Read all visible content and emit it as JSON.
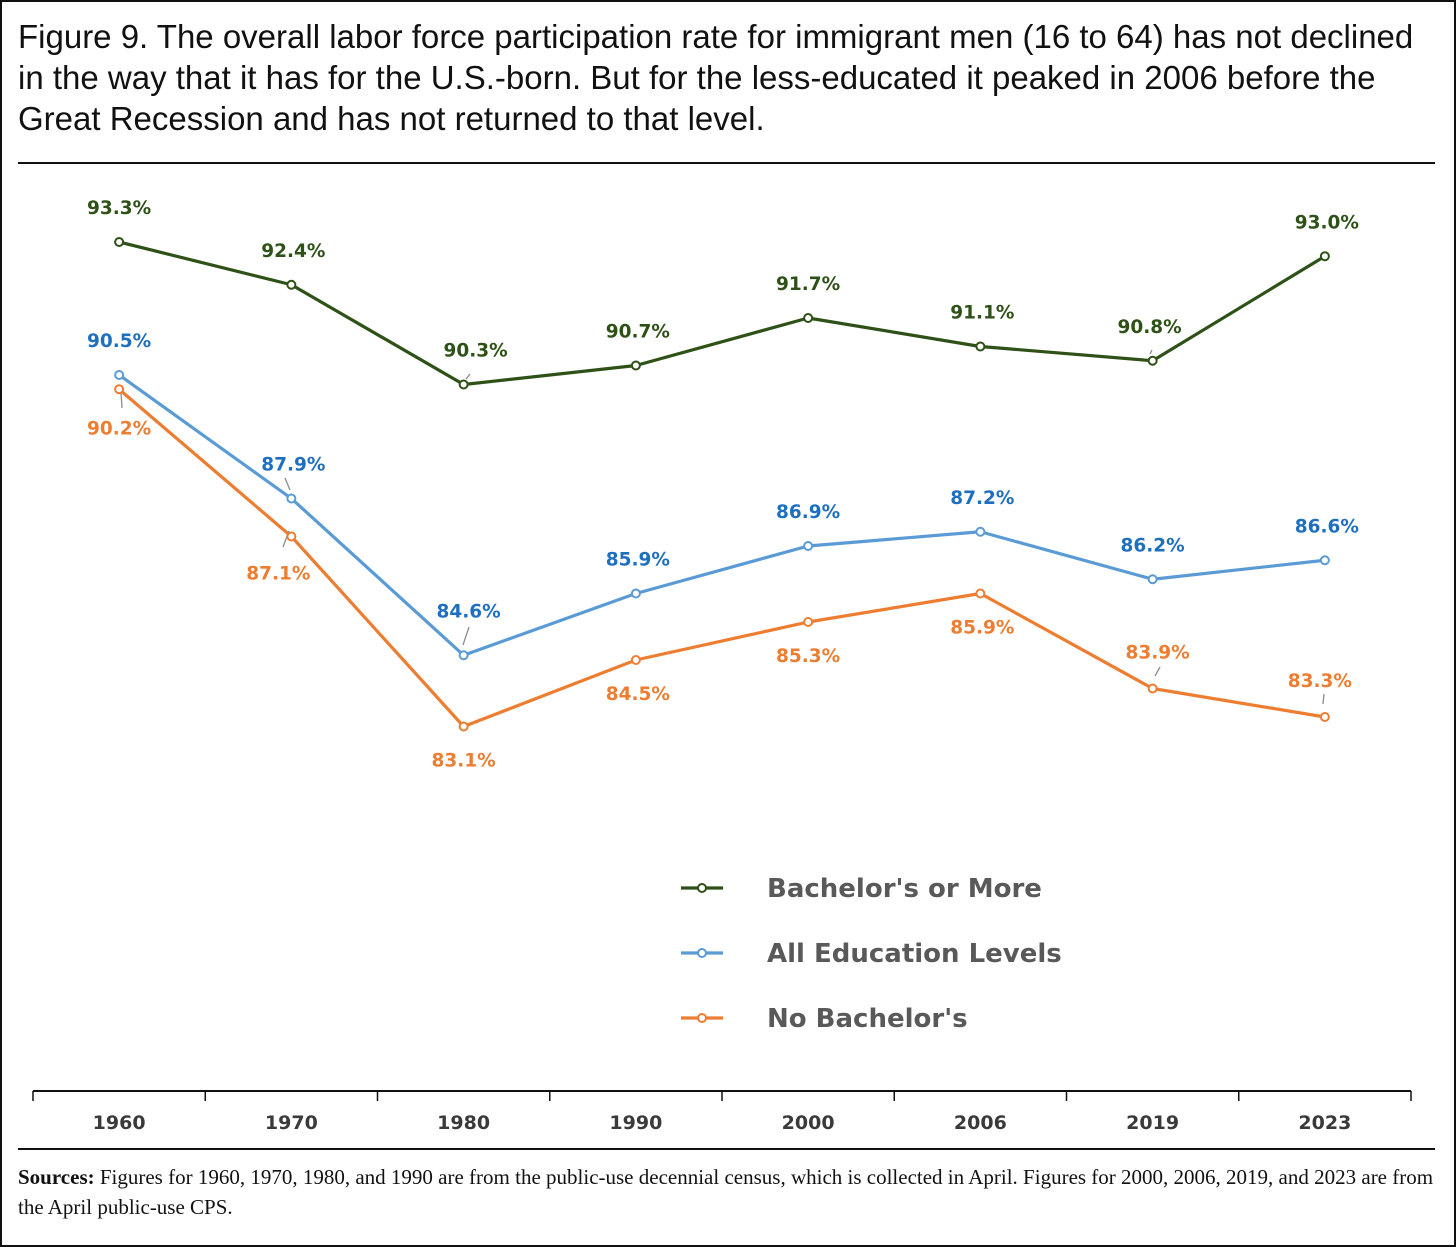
{
  "title": "Figure 9. The overall labor force participation rate for immigrant men (16 to 64) has not declined in the way that it has for the U.S.-born.  But for the less-educated it peaked in 2006 before the Great Recession and has not returned to that level.",
  "sources": {
    "label": "Sources:",
    "text": " Figures for 1960, 1970, 1980, and 1990 are from the public-use decennial census, which is collected in April. Figures for 2000, 2006, 2019, and 2023 are from the April public-use CPS."
  },
  "chart_data": {
    "type": "line",
    "title": "",
    "xlabel": "",
    "ylabel": "",
    "categories": [
      "1960",
      "1970",
      "1980",
      "1990",
      "2000",
      "2006",
      "2019",
      "2023"
    ],
    "y_axis_visible": false,
    "grid": false,
    "legend_position": "lower-center",
    "series": [
      {
        "name": "Bachelor's or More",
        "color": "#2e5117",
        "values": [
          93.3,
          92.4,
          90.3,
          90.7,
          91.7,
          91.1,
          90.8,
          93.0
        ],
        "labels": [
          "93.3%",
          "92.4%",
          "90.3%",
          "90.7%",
          "91.7%",
          "91.1%",
          "90.8%",
          "93.0%"
        ]
      },
      {
        "name": "All Education Levels",
        "color": "#5b9bd5",
        "label_color": "#1e6fbf",
        "values": [
          90.5,
          87.9,
          84.6,
          85.9,
          86.9,
          87.2,
          86.2,
          86.6
        ],
        "labels": [
          "90.5%",
          "87.9%",
          "84.6%",
          "85.9%",
          "86.9%",
          "87.2%",
          "86.2%",
          "86.6%"
        ]
      },
      {
        "name": "No Bachelor's",
        "color": "#ed7d31",
        "values": [
          90.2,
          87.1,
          83.1,
          84.5,
          85.3,
          85.9,
          83.9,
          83.3
        ],
        "labels": [
          "90.2%",
          "87.1%",
          "83.1%",
          "84.5%",
          "85.3%",
          "85.9%",
          "83.9%",
          "83.3%"
        ]
      }
    ]
  }
}
